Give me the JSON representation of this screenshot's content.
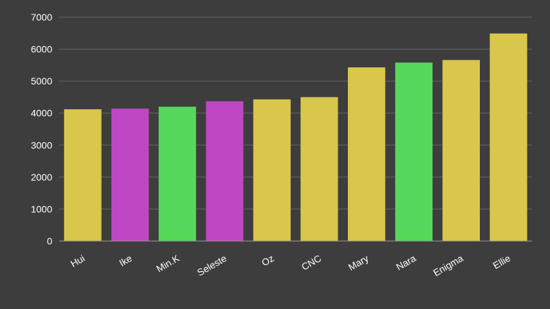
{
  "chart_data": {
    "type": "bar",
    "categories": [
      "Hui",
      "Ike",
      "Min.K",
      "Seleste",
      "Oz",
      "CNC",
      "Mary",
      "Nara",
      "Enigma",
      "Ellie"
    ],
    "values": [
      4120,
      4140,
      4200,
      4370,
      4430,
      4500,
      5430,
      5580,
      5660,
      6490
    ],
    "colors": [
      "#d8c74a",
      "#be48c3",
      "#56d85a",
      "#be48c3",
      "#d8c74a",
      "#d8c74a",
      "#d8c74a",
      "#56d85a",
      "#d8c74a",
      "#d8c74a"
    ],
    "ylim": [
      0,
      7000
    ],
    "yticks": [
      0,
      1000,
      2000,
      3000,
      4000,
      5000,
      6000,
      7000
    ],
    "grid": true,
    "background": "#3d3d3d",
    "title": "",
    "xlabel": "",
    "ylabel": ""
  }
}
